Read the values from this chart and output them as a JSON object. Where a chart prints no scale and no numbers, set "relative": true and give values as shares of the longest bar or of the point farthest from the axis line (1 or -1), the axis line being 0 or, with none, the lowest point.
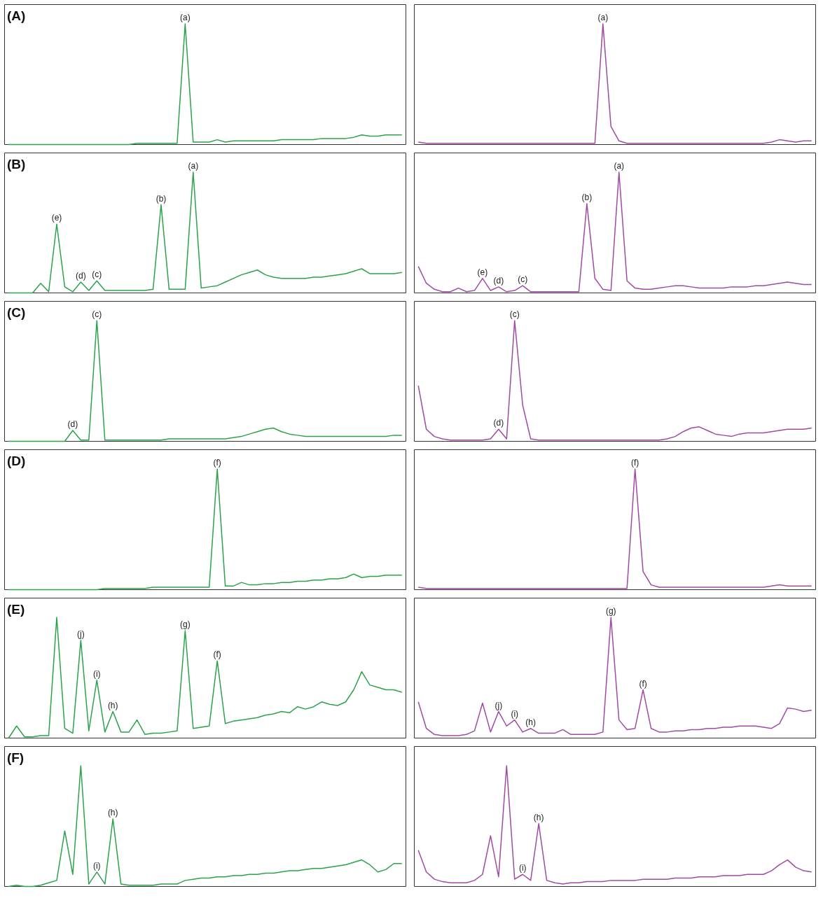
{
  "chart_data": [
    {
      "type": "line",
      "title": "(A)",
      "relative": true,
      "categories": [
        null,
        null,
        null,
        null,
        null,
        null,
        null,
        null,
        null,
        null,
        null,
        null,
        null,
        null,
        null,
        null,
        null,
        null,
        null,
        null,
        null,
        null,
        null,
        null,
        null,
        null,
        null,
        null,
        null,
        null,
        null,
        null,
        null,
        null,
        null,
        null,
        null,
        null,
        null,
        null,
        null,
        null,
        null,
        null,
        null,
        null,
        null,
        null,
        null,
        null
      ],
      "series": [
        {
          "color": "#2ca24c",
          "values": [
            0,
            0,
            0,
            0,
            0,
            0,
            0,
            0,
            0,
            0,
            0,
            0,
            0,
            0,
            0,
            0,
            0.01,
            0.01,
            0.01,
            0.01,
            0.01,
            0.01,
            1.0,
            0.02,
            0.02,
            0.02,
            0.04,
            0.02,
            0.03,
            0.03,
            0.03,
            0.03,
            0.03,
            0.03,
            0.04,
            0.04,
            0.04,
            0.04,
            0.04,
            0.05,
            0.05,
            0.05,
            0.05,
            0.06,
            0.08,
            0.07,
            0.07,
            0.08,
            0.08,
            0.08
          ]
        }
      ],
      "annotations": [
        {
          "text": "(a)",
          "y": 1.0
        }
      ]
    },
    {
      "type": "line",
      "relative": true,
      "categories": [
        null,
        null,
        null,
        null,
        null,
        null,
        null,
        null,
        null,
        null,
        null,
        null,
        null,
        null,
        null,
        null,
        null,
        null,
        null,
        null,
        null,
        null,
        null,
        null,
        null,
        null,
        null,
        null,
        null,
        null,
        null,
        null,
        null,
        null,
        null,
        null,
        null,
        null,
        null,
        null,
        null,
        null,
        null,
        null,
        null,
        null,
        null,
        null,
        null,
        null
      ],
      "series": [
        {
          "color": "#a04aa6",
          "values": [
            0.02,
            0.01,
            0.01,
            0.01,
            0.01,
            0.01,
            0.01,
            0.01,
            0.01,
            0.01,
            0.01,
            0.01,
            0.01,
            0.01,
            0.01,
            0.01,
            0.01,
            0.01,
            0.01,
            0.01,
            0.01,
            0.01,
            0.01,
            1.0,
            0.15,
            0.03,
            0.01,
            0.01,
            0.01,
            0.01,
            0.01,
            0.01,
            0.01,
            0.01,
            0.01,
            0.01,
            0.01,
            0.01,
            0.01,
            0.01,
            0.01,
            0.01,
            0.01,
            0.01,
            0.02,
            0.04,
            0.03,
            0.02,
            0.03,
            0.03
          ]
        }
      ],
      "annotations": [
        {
          "text": "(a)",
          "y": 1.0
        }
      ]
    },
    {
      "type": "line",
      "title": "(B)",
      "relative": true,
      "categories": [
        null,
        null,
        null,
        null,
        null,
        null,
        null,
        null,
        null,
        null,
        null,
        null,
        null,
        null,
        null,
        null,
        null,
        null,
        null,
        null,
        null,
        null,
        null,
        null,
        null,
        null,
        null,
        null,
        null,
        null,
        null,
        null,
        null,
        null,
        null,
        null,
        null,
        null,
        null,
        null,
        null,
        null,
        null,
        null,
        null,
        null,
        null,
        null,
        null,
        null
      ],
      "series": [
        {
          "color": "#2ca24c",
          "values": [
            0,
            0,
            0,
            0,
            0.08,
            0.01,
            0.57,
            0.05,
            0.01,
            0.09,
            0.02,
            0.1,
            0.02,
            0.02,
            0.02,
            0.02,
            0.02,
            0.02,
            0.03,
            0.73,
            0.03,
            0.03,
            0.03,
            1.0,
            0.04,
            0.05,
            0.06,
            0.09,
            0.12,
            0.15,
            0.17,
            0.19,
            0.15,
            0.13,
            0.12,
            0.12,
            0.12,
            0.12,
            0.13,
            0.13,
            0.14,
            0.15,
            0.16,
            0.18,
            0.2,
            0.16,
            0.16,
            0.16,
            0.16,
            0.17
          ]
        }
      ],
      "annotations": [
        {
          "text": "(e)",
          "y": 0.57
        },
        {
          "text": "(d)",
          "y": 0.09
        },
        {
          "text": "(c)",
          "y": 0.1
        },
        {
          "text": "(b)",
          "y": 0.73
        },
        {
          "text": "(a)",
          "y": 1.0
        }
      ]
    },
    {
      "type": "line",
      "relative": true,
      "categories": [
        null,
        null,
        null,
        null,
        null,
        null,
        null,
        null,
        null,
        null,
        null,
        null,
        null,
        null,
        null,
        null,
        null,
        null,
        null,
        null,
        null,
        null,
        null,
        null,
        null,
        null,
        null,
        null,
        null,
        null,
        null,
        null,
        null,
        null,
        null,
        null,
        null,
        null,
        null,
        null,
        null,
        null,
        null,
        null,
        null,
        null,
        null,
        null,
        null,
        null
      ],
      "series": [
        {
          "color": "#a04aa6",
          "values": [
            0.22,
            0.08,
            0.03,
            0.01,
            0.01,
            0.04,
            0.01,
            0.02,
            0.12,
            0.02,
            0.05,
            0.01,
            0.02,
            0.06,
            0.01,
            0.01,
            0.01,
            0.01,
            0.01,
            0.01,
            0.01,
            0.74,
            0.12,
            0.03,
            0.02,
            1.0,
            0.1,
            0.04,
            0.03,
            0.03,
            0.04,
            0.05,
            0.06,
            0.06,
            0.05,
            0.04,
            0.04,
            0.04,
            0.04,
            0.05,
            0.05,
            0.05,
            0.06,
            0.06,
            0.07,
            0.08,
            0.09,
            0.08,
            0.07,
            0.07
          ]
        }
      ],
      "annotations": [
        {
          "text": "(e)",
          "y": 0.12
        },
        {
          "text": "(d)",
          "y": 0.05
        },
        {
          "text": "(c)",
          "y": 0.06
        },
        {
          "text": "(b)",
          "y": 0.74
        },
        {
          "text": "(a)",
          "y": 1.0
        }
      ]
    },
    {
      "type": "line",
      "title": "(C)",
      "relative": true,
      "categories": [
        null,
        null,
        null,
        null,
        null,
        null,
        null,
        null,
        null,
        null,
        null,
        null,
        null,
        null,
        null,
        null,
        null,
        null,
        null,
        null,
        null,
        null,
        null,
        null,
        null,
        null,
        null,
        null,
        null,
        null,
        null,
        null,
        null,
        null,
        null,
        null,
        null,
        null,
        null,
        null,
        null,
        null,
        null,
        null,
        null,
        null,
        null,
        null,
        null,
        null
      ],
      "series": [
        {
          "color": "#2ca24c",
          "values": [
            0,
            0,
            0,
            0,
            0,
            0,
            0,
            0,
            0.09,
            0.01,
            0.01,
            1.0,
            0.01,
            0.01,
            0.01,
            0.01,
            0.01,
            0.01,
            0.01,
            0.01,
            0.02,
            0.02,
            0.02,
            0.02,
            0.02,
            0.02,
            0.02,
            0.02,
            0.03,
            0.04,
            0.06,
            0.08,
            0.1,
            0.11,
            0.08,
            0.06,
            0.05,
            0.04,
            0.04,
            0.04,
            0.04,
            0.04,
            0.04,
            0.04,
            0.04,
            0.04,
            0.04,
            0.04,
            0.05,
            0.05
          ]
        }
      ],
      "annotations": [
        {
          "text": "(d)",
          "y": 0.09
        },
        {
          "text": "(c)",
          "y": 1.0
        }
      ]
    },
    {
      "type": "line",
      "relative": true,
      "categories": [
        null,
        null,
        null,
        null,
        null,
        null,
        null,
        null,
        null,
        null,
        null,
        null,
        null,
        null,
        null,
        null,
        null,
        null,
        null,
        null,
        null,
        null,
        null,
        null,
        null,
        null,
        null,
        null,
        null,
        null,
        null,
        null,
        null,
        null,
        null,
        null,
        null,
        null,
        null,
        null,
        null,
        null,
        null,
        null,
        null,
        null,
        null,
        null,
        null,
        null
      ],
      "series": [
        {
          "color": "#a04aa6",
          "values": [
            0.46,
            0.1,
            0.04,
            0.02,
            0.01,
            0.01,
            0.01,
            0.01,
            0.01,
            0.02,
            0.1,
            0.02,
            1.0,
            0.3,
            0.02,
            0.01,
            0.01,
            0.01,
            0.01,
            0.01,
            0.01,
            0.01,
            0.01,
            0.01,
            0.01,
            0.01,
            0.01,
            0.01,
            0.01,
            0.01,
            0.01,
            0.02,
            0.04,
            0.08,
            0.11,
            0.12,
            0.09,
            0.06,
            0.05,
            0.04,
            0.06,
            0.07,
            0.07,
            0.07,
            0.08,
            0.09,
            0.1,
            0.1,
            0.1,
            0.11
          ]
        }
      ],
      "annotations": [
        {
          "text": "(d)",
          "y": 0.1
        },
        {
          "text": "(c)",
          "y": 1.0
        }
      ]
    },
    {
      "type": "line",
      "title": "(D)",
      "relative": true,
      "categories": [
        null,
        null,
        null,
        null,
        null,
        null,
        null,
        null,
        null,
        null,
        null,
        null,
        null,
        null,
        null,
        null,
        null,
        null,
        null,
        null,
        null,
        null,
        null,
        null,
        null,
        null,
        null,
        null,
        null,
        null,
        null,
        null,
        null,
        null,
        null,
        null,
        null,
        null,
        null,
        null,
        null,
        null,
        null,
        null,
        null,
        null,
        null,
        null,
        null,
        null
      ],
      "series": [
        {
          "color": "#2ca24c",
          "values": [
            0,
            0,
            0,
            0,
            0,
            0,
            0,
            0,
            0,
            0,
            0,
            0,
            0.01,
            0.01,
            0.01,
            0.01,
            0.01,
            0.01,
            0.02,
            0.02,
            0.02,
            0.02,
            0.02,
            0.02,
            0.02,
            0.02,
            1.0,
            0.03,
            0.03,
            0.06,
            0.04,
            0.04,
            0.05,
            0.05,
            0.06,
            0.06,
            0.07,
            0.07,
            0.08,
            0.08,
            0.09,
            0.09,
            0.1,
            0.13,
            0.1,
            0.11,
            0.11,
            0.12,
            0.12,
            0.12
          ]
        }
      ],
      "annotations": [
        {
          "text": "(f)",
          "y": 1.0
        }
      ]
    },
    {
      "type": "line",
      "relative": true,
      "categories": [
        null,
        null,
        null,
        null,
        null,
        null,
        null,
        null,
        null,
        null,
        null,
        null,
        null,
        null,
        null,
        null,
        null,
        null,
        null,
        null,
        null,
        null,
        null,
        null,
        null,
        null,
        null,
        null,
        null,
        null,
        null,
        null,
        null,
        null,
        null,
        null,
        null,
        null,
        null,
        null,
        null,
        null,
        null,
        null,
        null,
        null,
        null,
        null,
        null,
        null
      ],
      "series": [
        {
          "color": "#a04aa6",
          "values": [
            0.02,
            0.01,
            0.01,
            0.01,
            0.01,
            0.01,
            0.01,
            0.01,
            0.01,
            0.01,
            0.01,
            0.01,
            0.01,
            0.01,
            0.01,
            0.01,
            0.01,
            0.01,
            0.01,
            0.01,
            0.01,
            0.01,
            0.01,
            0.01,
            0.01,
            0.01,
            0.01,
            1.0,
            0.15,
            0.04,
            0.02,
            0.02,
            0.02,
            0.02,
            0.02,
            0.02,
            0.02,
            0.02,
            0.02,
            0.02,
            0.02,
            0.02,
            0.02,
            0.02,
            0.03,
            0.04,
            0.03,
            0.03,
            0.03,
            0.03
          ]
        }
      ],
      "annotations": [
        {
          "text": "(f)",
          "y": 1.0
        }
      ]
    },
    {
      "type": "line",
      "title": "(E)",
      "relative": true,
      "categories": [
        null,
        null,
        null,
        null,
        null,
        null,
        null,
        null,
        null,
        null,
        null,
        null,
        null,
        null,
        null,
        null,
        null,
        null,
        null,
        null,
        null,
        null,
        null,
        null,
        null,
        null,
        null,
        null,
        null,
        null,
        null,
        null,
        null,
        null,
        null,
        null,
        null,
        null,
        null,
        null,
        null,
        null,
        null,
        null,
        null,
        null,
        null,
        null,
        null,
        null
      ],
      "series": [
        {
          "color": "#2ca24c",
          "values": [
            0,
            0.1,
            0.01,
            0.01,
            0.02,
            0.02,
            1.0,
            0.08,
            0.04,
            0.81,
            0.06,
            0.48,
            0.05,
            0.22,
            0.05,
            0.05,
            0.15,
            0.03,
            0.04,
            0.04,
            0.05,
            0.06,
            0.89,
            0.08,
            0.09,
            0.1,
            0.64,
            0.12,
            0.14,
            0.15,
            0.16,
            0.17,
            0.19,
            0.2,
            0.22,
            0.21,
            0.26,
            0.24,
            0.26,
            0.3,
            0.28,
            0.27,
            0.3,
            0.4,
            0.55,
            0.44,
            0.42,
            0.4,
            0.4,
            0.38
          ]
        }
      ],
      "annotations": [
        {
          "text": "(j)",
          "y": 0.81
        },
        {
          "text": "(i)",
          "y": 0.48
        },
        {
          "text": "(h)",
          "y": 0.22
        },
        {
          "text": "(g)",
          "y": 0.89
        },
        {
          "text": "(f)",
          "y": 0.64
        }
      ]
    },
    {
      "type": "line",
      "relative": true,
      "categories": [
        null,
        null,
        null,
        null,
        null,
        null,
        null,
        null,
        null,
        null,
        null,
        null,
        null,
        null,
        null,
        null,
        null,
        null,
        null,
        null,
        null,
        null,
        null,
        null,
        null,
        null,
        null,
        null,
        null,
        null,
        null,
        null,
        null,
        null,
        null,
        null,
        null,
        null,
        null,
        null,
        null,
        null,
        null,
        null,
        null,
        null,
        null,
        null,
        null,
        null
      ],
      "series": [
        {
          "color": "#a04aa6",
          "values": [
            0.3,
            0.08,
            0.03,
            0.02,
            0.02,
            0.02,
            0.03,
            0.06,
            0.29,
            0.05,
            0.22,
            0.1,
            0.15,
            0.05,
            0.08,
            0.04,
            0.04,
            0.04,
            0.07,
            0.03,
            0.03,
            0.03,
            0.03,
            0.05,
            1.0,
            0.15,
            0.07,
            0.08,
            0.4,
            0.08,
            0.05,
            0.05,
            0.06,
            0.06,
            0.07,
            0.07,
            0.08,
            0.08,
            0.09,
            0.09,
            0.1,
            0.1,
            0.1,
            0.09,
            0.08,
            0.12,
            0.25,
            0.24,
            0.22,
            0.23
          ]
        }
      ],
      "annotations": [
        {
          "text": "(j)",
          "y": 0.22
        },
        {
          "text": "(i)",
          "y": 0.15
        },
        {
          "text": "(h)",
          "y": 0.08
        },
        {
          "text": "(g)",
          "y": 1.0
        },
        {
          "text": "(f)",
          "y": 0.4
        }
      ]
    },
    {
      "type": "line",
      "title": "(F)",
      "relative": true,
      "categories": [
        null,
        null,
        null,
        null,
        null,
        null,
        null,
        null,
        null,
        null,
        null,
        null,
        null,
        null,
        null,
        null,
        null,
        null,
        null,
        null,
        null,
        null,
        null,
        null,
        null,
        null,
        null,
        null,
        null,
        null,
        null,
        null,
        null,
        null,
        null,
        null,
        null,
        null,
        null,
        null,
        null,
        null,
        null,
        null,
        null,
        null,
        null,
        null,
        null,
        null
      ],
      "series": [
        {
          "color": "#2ca24c",
          "values": [
            0,
            0.01,
            0,
            0,
            0.01,
            0.03,
            0.05,
            0.46,
            0.1,
            1.0,
            0.02,
            0.12,
            0.02,
            0.56,
            0.02,
            0.01,
            0.01,
            0.01,
            0.01,
            0.02,
            0.02,
            0.02,
            0.05,
            0.06,
            0.07,
            0.07,
            0.08,
            0.08,
            0.09,
            0.09,
            0.1,
            0.1,
            0.11,
            0.11,
            0.12,
            0.13,
            0.13,
            0.14,
            0.15,
            0.15,
            0.16,
            0.17,
            0.18,
            0.2,
            0.22,
            0.18,
            0.12,
            0.14,
            0.19,
            0.19
          ]
        }
      ],
      "annotations": [
        {
          "text": "(i)",
          "y": 0.12
        },
        {
          "text": "(h)",
          "y": 0.56
        }
      ]
    },
    {
      "type": "line",
      "relative": true,
      "categories": [
        null,
        null,
        null,
        null,
        null,
        null,
        null,
        null,
        null,
        null,
        null,
        null,
        null,
        null,
        null,
        null,
        null,
        null,
        null,
        null,
        null,
        null,
        null,
        null,
        null,
        null,
        null,
        null,
        null,
        null,
        null,
        null,
        null,
        null,
        null,
        null,
        null,
        null,
        null,
        null,
        null,
        null,
        null,
        null,
        null,
        null,
        null,
        null,
        null,
        null
      ],
      "series": [
        {
          "color": "#a04aa6",
          "values": [
            0.3,
            0.12,
            0.06,
            0.04,
            0.03,
            0.03,
            0.03,
            0.05,
            0.1,
            0.42,
            0.08,
            1.0,
            0.06,
            0.1,
            0.05,
            0.52,
            0.05,
            0.03,
            0.02,
            0.03,
            0.03,
            0.04,
            0.04,
            0.04,
            0.05,
            0.05,
            0.05,
            0.05,
            0.06,
            0.06,
            0.06,
            0.06,
            0.07,
            0.07,
            0.07,
            0.08,
            0.08,
            0.08,
            0.09,
            0.09,
            0.09,
            0.1,
            0.1,
            0.1,
            0.13,
            0.18,
            0.22,
            0.16,
            0.13,
            0.12
          ]
        }
      ],
      "annotations": [
        {
          "text": "(i)",
          "y": 0.1
        },
        {
          "text": "(h)",
          "y": 0.52
        }
      ]
    }
  ]
}
